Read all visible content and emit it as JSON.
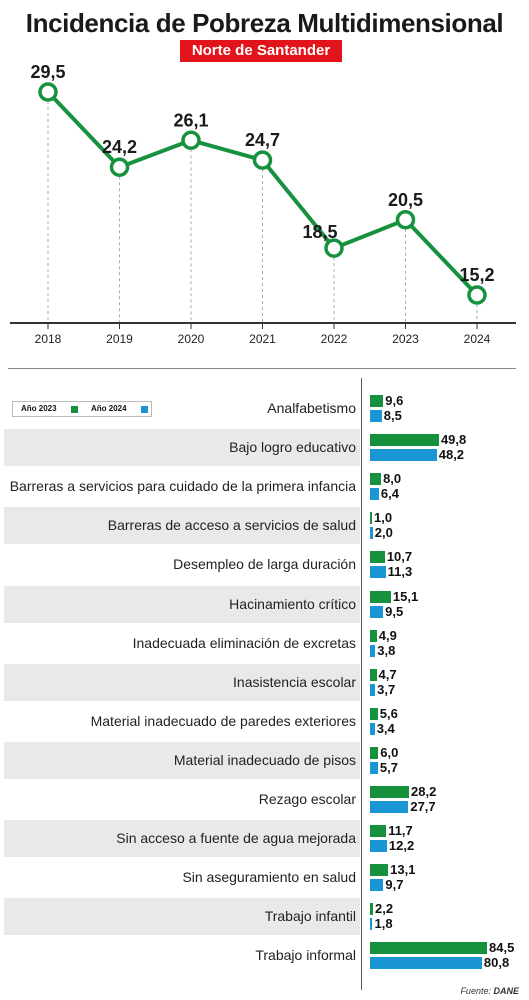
{
  "header": {
    "title": "Incidencia de Pobreza Multidimensional",
    "subtitle": "Norte de Santander"
  },
  "colors": {
    "line": "#16923f",
    "series_2023": "#16923f",
    "series_2024": "#1a96d4",
    "subtitle_bg": "#e3131b",
    "row_shade": "#e9e9e9"
  },
  "chart_data": [
    {
      "type": "line",
      "title": "Incidencia de Pobreza Multidimensional",
      "subtitle": "Norte de Santander",
      "x": [
        "2018",
        "2019",
        "2020",
        "2021",
        "2022",
        "2023",
        "2024"
      ],
      "x_labels": [
        "2018",
        "2019",
        "2020",
        "2021",
        "2022",
        "2023",
        "2024"
      ],
      "values": [
        29.5,
        24.2,
        26.1,
        24.7,
        18.5,
        20.5,
        15.2
      ],
      "value_labels": [
        "29,5",
        "24,2",
        "26,1",
        "24,7",
        "18,5",
        "20,5",
        "15,2"
      ],
      "ylim": [
        0,
        35
      ],
      "grid": "vertical dashed",
      "markers": "hollow circles"
    },
    {
      "type": "bar",
      "orientation": "horizontal",
      "legend_position": "top-left",
      "categories": [
        "Analfabetismo",
        "Bajo logro educativo",
        "Barreras a servicios para cuidado de la primera infancia",
        "Barreras de acceso a servicios de salud",
        "Desempleo de larga duración",
        "Hacinamiento crítico",
        "Inadecuada eliminación de excretas",
        "Inasistencia escolar",
        "Material inadecuado de paredes exteriores",
        "Material inadecuado de pisos",
        "Rezago escolar",
        "Sin acceso a fuente de agua mejorada",
        "Sin aseguramiento en salud",
        "Trabajo infantil",
        "Trabajo informal"
      ],
      "series": [
        {
          "name": "Año 2023",
          "values": [
            9.6,
            49.8,
            8.0,
            1.0,
            10.7,
            15.1,
            4.9,
            4.7,
            5.6,
            6.0,
            28.2,
            11.7,
            13.1,
            2.2,
            84.5
          ],
          "labels": [
            "9,6",
            "49,8",
            "8,0",
            "1,0",
            "10,7",
            "15,1",
            "4,9",
            "4,7",
            "5,6",
            "6,0",
            "28,2",
            "11,7",
            "13,1",
            "2,2",
            "84,5"
          ]
        },
        {
          "name": "Año 2024",
          "values": [
            8.5,
            48.2,
            6.4,
            2.0,
            11.3,
            9.5,
            3.8,
            3.7,
            3.4,
            5.7,
            27.7,
            12.2,
            9.7,
            1.8,
            80.8
          ],
          "labels": [
            "8,5",
            "48,2",
            "6,4",
            "2,0",
            "11,3",
            "9,5",
            "3,8",
            "3,7",
            "3,4",
            "5,7",
            "27,7",
            "12,2",
            "9,7",
            "1,8",
            "80,8"
          ]
        }
      ],
      "xlim": [
        0,
        84.5
      ]
    }
  ],
  "footer": {
    "source_label": "Fuente:",
    "source_name": "DANE"
  }
}
